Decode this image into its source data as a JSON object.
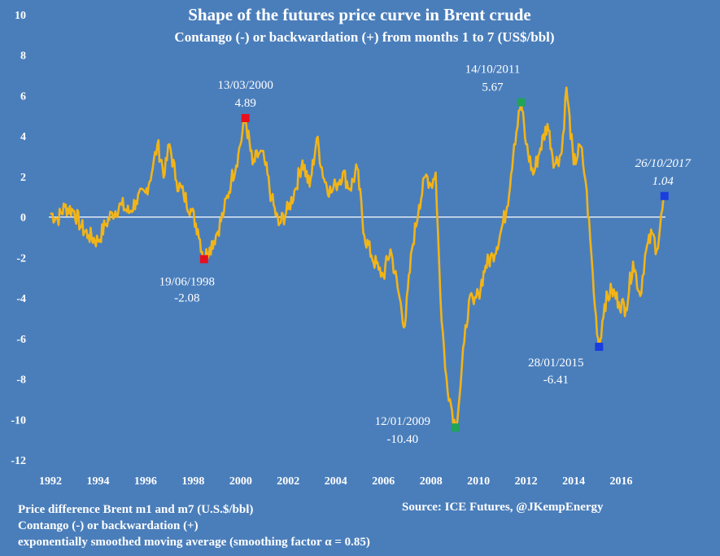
{
  "chart_data": {
    "type": "line",
    "title": "Shape of  the futures price curve in Brent crude",
    "subtitle": "Contango (-) or backwardation (+) from months 1 to 7 (US$/bbl)",
    "xlabel": "",
    "ylabel": "",
    "xlim": [
      1992,
      2018
    ],
    "ylim": [
      -12,
      10
    ],
    "grid": false,
    "x_ticks": [
      "1992",
      "1994",
      "1996",
      "1998",
      "2000",
      "2002",
      "2004",
      "2006",
      "2008",
      "2010",
      "2012",
      "2014",
      "2016"
    ],
    "x_tick_values": [
      1992,
      1994,
      1996,
      1998,
      2000,
      2002,
      2004,
      2006,
      2008,
      2010,
      2012,
      2014,
      2016
    ],
    "y_ticks": [
      "10",
      "8",
      "6",
      "4",
      "2",
      "0",
      "-2",
      "-4",
      "-6",
      "-8",
      "-10",
      "-12"
    ],
    "y_tick_values": [
      10,
      8,
      6,
      4,
      2,
      0,
      -2,
      -4,
      -6,
      -8,
      -10,
      -12
    ],
    "series": [
      {
        "name": "Brent m1-m7 spread (smoothed)",
        "color": "#f2b417",
        "x": [
          1992.0,
          1992.3,
          1992.6,
          1993.0,
          1993.3,
          1993.6,
          1994.0,
          1994.3,
          1994.6,
          1995.0,
          1995.3,
          1995.6,
          1996.0,
          1996.3,
          1996.5,
          1996.8,
          1997.0,
          1997.3,
          1997.6,
          1997.9,
          1998.2,
          1998.46,
          1998.7,
          1999.0,
          1999.3,
          1999.6,
          1999.9,
          2000.2,
          2000.5,
          2000.8,
          2001.0,
          2001.3,
          2001.6,
          2002.0,
          2002.3,
          2002.6,
          2002.9,
          2003.2,
          2003.5,
          2003.8,
          2004.0,
          2004.3,
          2004.6,
          2004.9,
          2005.2,
          2005.5,
          2005.8,
          2006.0,
          2006.3,
          2006.6,
          2006.9,
          2007.2,
          2007.5,
          2007.8,
          2008.0,
          2008.2,
          2008.4,
          2008.6,
          2008.8,
          2009.03,
          2009.2,
          2009.4,
          2009.6,
          2009.8,
          2010.0,
          2010.3,
          2010.6,
          2010.9,
          2011.2,
          2011.5,
          2011.79,
          2012.0,
          2012.3,
          2012.6,
          2012.9,
          2013.2,
          2013.5,
          2013.7,
          2014.0,
          2014.3,
          2014.5,
          2014.7,
          2014.9,
          2015.07,
          2015.3,
          2015.6,
          2015.9,
          2016.2,
          2016.5,
          2016.8,
          2017.0,
          2017.3,
          2017.5,
          2017.82
        ],
        "values": [
          0.2,
          -0.1,
          0.5,
          0.3,
          -0.5,
          -0.9,
          -1.2,
          -0.4,
          0.2,
          0.6,
          0.2,
          0.8,
          1.2,
          2.4,
          3.6,
          2.1,
          3.6,
          1.8,
          1.1,
          0.4,
          -0.6,
          -2.08,
          -1.5,
          -0.8,
          0.3,
          1.8,
          3.1,
          4.89,
          2.6,
          3.2,
          2.8,
          0.9,
          -0.4,
          0.4,
          1.4,
          2.8,
          1.5,
          3.9,
          1.9,
          1.2,
          1.6,
          2.2,
          1.4,
          2.4,
          -0.9,
          -1.9,
          -2.6,
          -2.9,
          -1.6,
          -3.5,
          -5.4,
          -1.6,
          0.6,
          2.1,
          1.6,
          2.2,
          -4.0,
          -7.5,
          -9.0,
          -10.4,
          -8.9,
          -6.2,
          -4.1,
          -4.3,
          -3.8,
          -2.4,
          -1.9,
          -0.9,
          0.5,
          3.6,
          5.67,
          3.6,
          2.1,
          3.4,
          4.6,
          2.6,
          3.2,
          6.4,
          2.6,
          3.5,
          1.8,
          -1.1,
          -4.5,
          -6.41,
          -4.3,
          -3.6,
          -4.2,
          -4.5,
          -2.2,
          -3.9,
          -1.9,
          -0.8,
          -1.6,
          1.04
        ]
      }
    ],
    "annotations": [
      {
        "date": "19/06/1998",
        "value": "-2.08",
        "x": 1998.46,
        "y": -2.08,
        "color": "#e8101e",
        "style": "normal",
        "label_side": "below"
      },
      {
        "date": "13/03/2000",
        "value": "4.89",
        "x": 2000.2,
        "y": 4.89,
        "color": "#e8101e",
        "style": "normal",
        "label_side": "above"
      },
      {
        "date": "12/01/2009",
        "value": "-10.40",
        "x": 2009.03,
        "y": -10.4,
        "color": "#21a35a",
        "style": "normal",
        "label_side": "left"
      },
      {
        "date": "14/10/2011",
        "value": "5.67",
        "x": 2011.79,
        "y": 5.67,
        "color": "#21a35a",
        "style": "normal",
        "label_side": "above"
      },
      {
        "date": "28/01/2015",
        "value": "-6.41",
        "x": 2015.07,
        "y": -6.41,
        "color": "#1a3de0",
        "style": "normal",
        "label_side": "below"
      },
      {
        "date": "26/10/2017",
        "value": "1.04",
        "x": 2017.82,
        "y": 1.04,
        "color": "#1a3de0",
        "style": "italic",
        "label_side": "above"
      }
    ]
  },
  "footer": {
    "line1": "Price difference Brent m1 and m7 (U.S.$/bbl)",
    "line2": "Contango (-) or backwardation (+)",
    "line3": "exponentially smoothed  moving average (smoothing factor α = 0.85)",
    "source": "Source:  ICE Futures, @JKempEnergy"
  }
}
